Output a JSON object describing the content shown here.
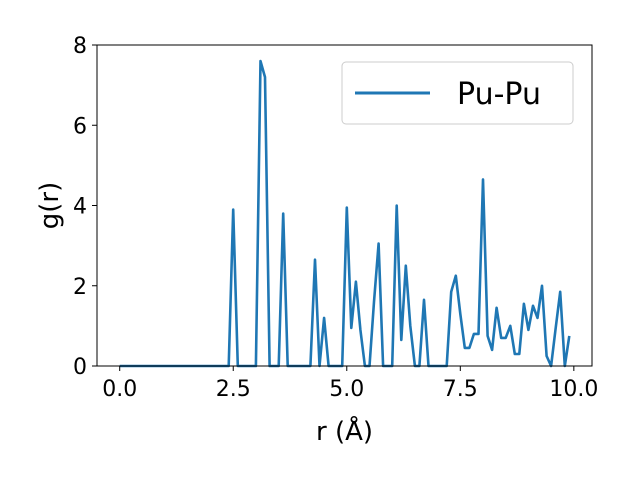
{
  "chart_data": {
    "type": "line",
    "xlabel": "r (Å)",
    "ylabel": "g(r)",
    "xlim": [
      -0.5,
      10.4
    ],
    "ylim": [
      0,
      8
    ],
    "xticks": [
      "0.0",
      "2.5",
      "5.0",
      "7.5",
      "10.0"
    ],
    "yticks": [
      "0",
      "2",
      "4",
      "6",
      "8"
    ],
    "legend_position": "top-right",
    "series": [
      {
        "name": "Pu-Pu",
        "color": "#1f77b4",
        "x": [
          0.0,
          0.1,
          0.2,
          0.3,
          0.4,
          0.5,
          0.6,
          0.7,
          0.8,
          0.9,
          1.0,
          1.1,
          1.2,
          1.3,
          1.4,
          1.5,
          1.6,
          1.7,
          1.8,
          1.9,
          2.0,
          2.1,
          2.2,
          2.3,
          2.4,
          2.5,
          2.6,
          2.7,
          2.8,
          2.9,
          3.0,
          3.1,
          3.2,
          3.3,
          3.4,
          3.5,
          3.6,
          3.7,
          3.8,
          3.9,
          4.0,
          4.1,
          4.2,
          4.3,
          4.4,
          4.5,
          4.6,
          4.7,
          4.8,
          4.9,
          5.0,
          5.1,
          5.2,
          5.3,
          5.4,
          5.5,
          5.6,
          5.7,
          5.8,
          5.9,
          6.0,
          6.1,
          6.2,
          6.3,
          6.4,
          6.5,
          6.6,
          6.7,
          6.8,
          6.9,
          7.0,
          7.1,
          7.2,
          7.3,
          7.4,
          7.5,
          7.6,
          7.7,
          7.8,
          7.9,
          8.0,
          8.1,
          8.2,
          8.3,
          8.4,
          8.5,
          8.6,
          8.7,
          8.8,
          8.9,
          9.0,
          9.1,
          9.2,
          9.3,
          9.4,
          9.5,
          9.6,
          9.7,
          9.8,
          9.9
        ],
        "y": [
          0,
          0,
          0,
          0,
          0,
          0,
          0,
          0,
          0,
          0,
          0,
          0,
          0,
          0,
          0,
          0,
          0,
          0,
          0,
          0,
          0,
          0,
          0,
          0,
          0,
          3.9,
          0,
          0,
          0,
          0,
          0,
          7.6,
          7.2,
          0,
          0,
          0,
          3.8,
          0,
          0,
          0,
          0,
          0,
          0,
          2.65,
          0,
          1.2,
          0,
          0,
          0,
          0,
          3.95,
          0.95,
          2.1,
          0.9,
          0,
          0,
          1.6,
          3.05,
          0,
          0,
          0,
          4.0,
          0.65,
          2.5,
          1.0,
          0,
          0,
          1.65,
          0,
          0,
          0,
          0,
          0,
          1.85,
          2.25,
          1.3,
          0.45,
          0.45,
          0.8,
          0.8,
          4.65,
          0.75,
          0.4,
          1.45,
          0.7,
          0.7,
          1.0,
          0.3,
          0.3,
          1.55,
          0.9,
          1.5,
          1.2,
          2.0,
          0.25,
          0,
          0.95,
          1.85,
          0,
          0.75
        ]
      }
    ]
  }
}
